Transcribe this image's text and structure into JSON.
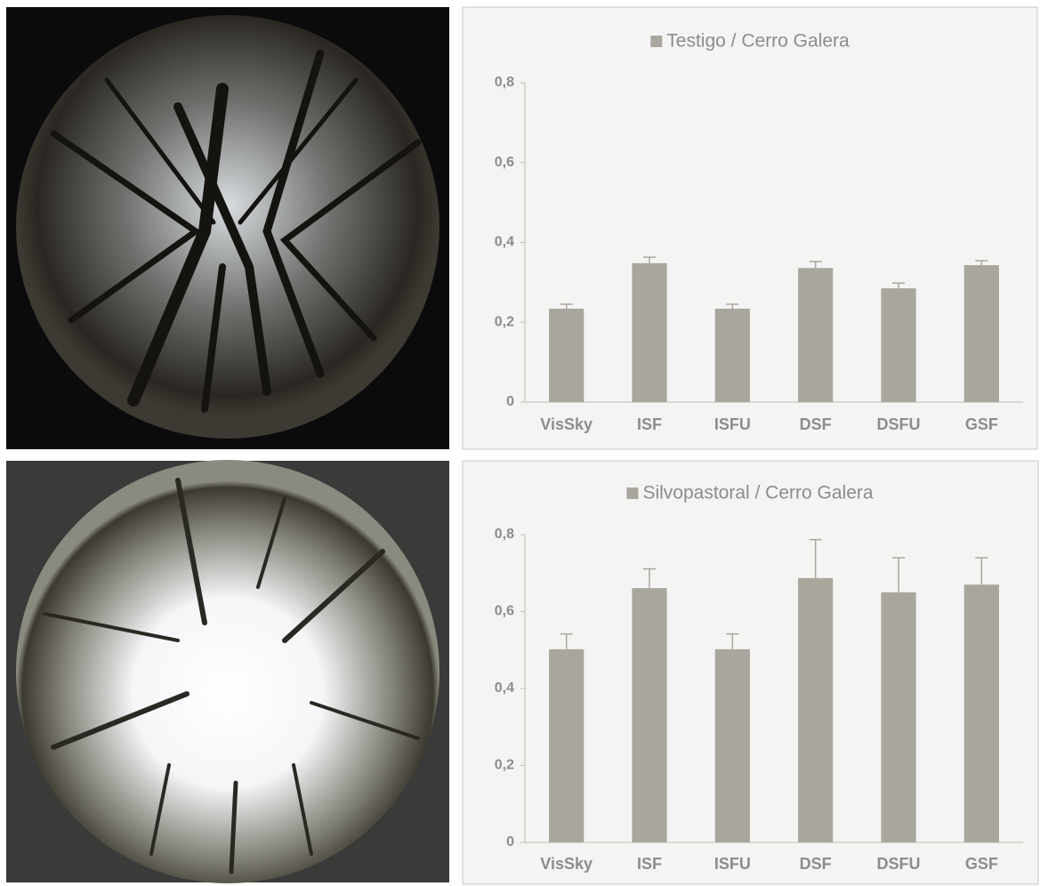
{
  "chart_data": [
    {
      "type": "bar",
      "series": [
        {
          "name": "Testigo / Cerro Galera",
          "color": "#a9a69e",
          "values": [
            0.234,
            0.348,
            0.234,
            0.336,
            0.285,
            0.343
          ],
          "errors": [
            0.011,
            0.015,
            0.011,
            0.016,
            0.013,
            0.011
          ]
        }
      ],
      "categories": [
        "VisSky",
        "ISF",
        "ISFU",
        "DSF",
        "DSFU",
        "GSF"
      ],
      "ylim": [
        0,
        0.8
      ],
      "yticks": [
        0,
        {
          "value": 0.2,
          "label": "0,2"
        },
        {
          "value": 0.4,
          "label": "0,4"
        },
        {
          "value": 0.6,
          "label": "0,6"
        },
        {
          "value": 0.8,
          "label": "0,8"
        }
      ],
      "legend": "top"
    },
    {
      "type": "bar",
      "series": [
        {
          "name": "Silvopastoral / Cerro Galera",
          "color": "#a9a69e",
          "values": [
            0.502,
            0.661,
            0.502,
            0.687,
            0.65,
            0.67
          ],
          "errors": [
            0.04,
            0.05,
            0.04,
            0.1,
            0.09,
            0.07
          ]
        }
      ],
      "categories": [
        "VisSky",
        "ISF",
        "ISFU",
        "DSF",
        "DSFU",
        "GSF"
      ],
      "ylim": [
        0,
        0.8
      ],
      "yticks": [
        0,
        {
          "value": 0.2,
          "label": "0,2"
        },
        {
          "value": 0.4,
          "label": "0,4"
        },
        {
          "value": 0.6,
          "label": "0,6"
        },
        {
          "value": 0.8,
          "label": "0,8"
        }
      ],
      "legend": "top"
    }
  ]
}
